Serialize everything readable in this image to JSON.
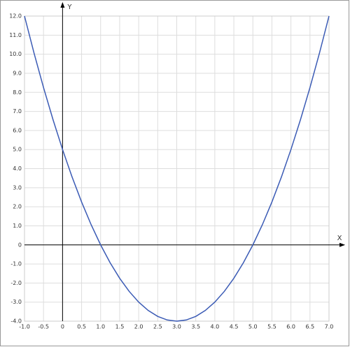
{
  "chart_data": {
    "type": "line",
    "x_label": "X",
    "y_label": "Y",
    "x": [
      -1,
      -0.75,
      -0.5,
      -0.25,
      0,
      0.25,
      0.5,
      0.75,
      1,
      1.25,
      1.5,
      1.75,
      2,
      2.25,
      2.5,
      2.75,
      3,
      3.25,
      3.5,
      3.75,
      4,
      4.25,
      4.5,
      4.75,
      5,
      5.25,
      5.5,
      5.75,
      6,
      6.25,
      6.5,
      6.75,
      7
    ],
    "series": [
      {
        "color": "#3b5bb5",
        "values": [
          12,
          10.0625,
          8.25,
          6.5625,
          5,
          3.5625,
          2.25,
          1.0625,
          0,
          -0.9375,
          -1.75,
          -2.4375,
          -3,
          -3.4375,
          -3.75,
          -3.9375,
          -4,
          -3.9375,
          -3.75,
          -3.4375,
          -3,
          -2.4375,
          -1.75,
          -0.9375,
          0,
          1.0625,
          2.25,
          3.5625,
          5,
          6.5625,
          8.25,
          10.0625,
          12
        ]
      }
    ],
    "xlim": [
      -1,
      7
    ],
    "ylim": [
      -4,
      12
    ],
    "xticks": [
      {
        "value": -1,
        "label": "-1.0"
      },
      -0.5,
      0,
      0.5,
      {
        "value": 1,
        "label": "1.0"
      },
      1.5,
      {
        "value": 2,
        "label": "2.0"
      },
      2.5,
      {
        "value": 3,
        "label": "3.0"
      },
      3.5,
      {
        "value": 4,
        "label": "4.0"
      },
      4.5,
      {
        "value": 5,
        "label": "5.0"
      },
      5.5,
      {
        "value": 6,
        "label": "6.0"
      },
      6.5,
      {
        "value": 7,
        "label": "7.0"
      }
    ],
    "yticks": [
      {
        "value": -4,
        "label": "-4.0"
      },
      {
        "value": -3,
        "label": "-3.0"
      },
      {
        "value": -2,
        "label": "-2.0"
      },
      {
        "value": -1,
        "label": "-1.0"
      },
      0,
      {
        "value": 1,
        "label": "1.0"
      },
      {
        "value": 2,
        "label": "2.0"
      },
      {
        "value": 3,
        "label": "3.0"
      },
      {
        "value": 4,
        "label": "4.0"
      },
      {
        "value": 5,
        "label": "5.0"
      },
      {
        "value": 6,
        "label": "6.0"
      },
      {
        "value": 7,
        "label": "7.0"
      },
      {
        "value": 8,
        "label": "8.0"
      },
      {
        "value": 9,
        "label": "9.0"
      },
      {
        "value": 10,
        "label": "10.0"
      },
      {
        "value": 11,
        "label": "11.0"
      },
      {
        "value": 12,
        "label": "12.0"
      }
    ],
    "grid": true
  }
}
